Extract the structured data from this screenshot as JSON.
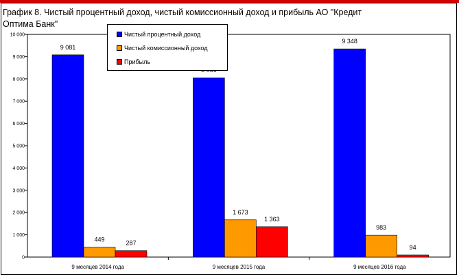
{
  "title": "График 8. Чистый процентный доход, чистый комиссионный доход и прибыль АО \"Кредит Оптима Банк\"",
  "colors": {
    "accent_rule": "#d40000",
    "series": [
      "#0000ff",
      "#ff9900",
      "#ff0000"
    ]
  },
  "chart_data": {
    "type": "bar",
    "title": "График 8. Чистый процентный доход, чистый комиссионный доход и прибыль АО \"Кредит Оптима Банк\"",
    "categories": [
      "9 месяцев 2014 года",
      "9 месяцев 2015 года",
      "9 месяцев 2016 года"
    ],
    "series": [
      {
        "name": "Чистый процентный доход",
        "values": [
          9081,
          8051,
          9348
        ],
        "labels": [
          "9 081",
          "8 051",
          "9 348"
        ]
      },
      {
        "name": "Чистый комиссионный доход",
        "values": [
          449,
          1673,
          983
        ],
        "labels": [
          "449",
          "1 673",
          "983"
        ]
      },
      {
        "name": "Прибыль",
        "values": [
          287,
          1363,
          94
        ],
        "labels": [
          "287",
          "1 363",
          "94"
        ]
      }
    ],
    "ylim": [
      0,
      10000
    ],
    "yticks": [
      0,
      1000,
      2000,
      3000,
      4000,
      5000,
      6000,
      7000,
      8000,
      9000,
      10000
    ],
    "ytick_labels": [
      "0",
      "1 000",
      "2 000",
      "3 000",
      "4 000",
      "5 000",
      "6 000",
      "7 000",
      "8 000",
      "9 000",
      "10 000"
    ],
    "xlabel": "",
    "ylabel": "",
    "grid": false,
    "legend": "top-left inside"
  }
}
